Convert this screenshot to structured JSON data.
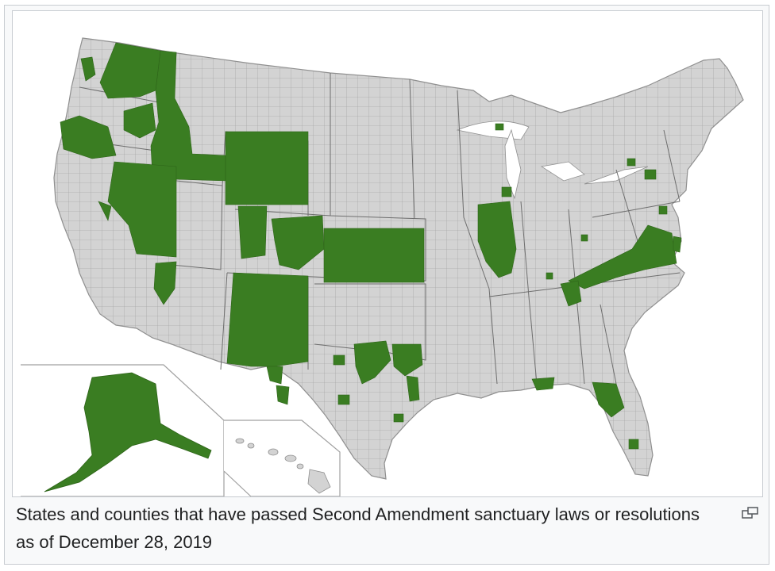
{
  "caption": "States and counties that have passed Second Amendment sanctuary laws or resolutions as of December 28, 2019",
  "colors": {
    "land": "#d3d3d3",
    "sanctuary": "#3a7d22",
    "border": "#8f8f8f",
    "frame": "#c8ccd1",
    "caption_bg": "#f8f9fa"
  },
  "regions": {
    "states_full": [
      "Wyoming",
      "Kansas",
      "Idaho"
    ],
    "states_partial": [
      "Washington",
      "Oregon",
      "Nevada",
      "Utah",
      "Colorado",
      "New Mexico",
      "Arizona",
      "Texas",
      "Oklahoma",
      "Illinois",
      "Virginia",
      "Tennessee",
      "Kentucky",
      "North Carolina",
      "Florida",
      "Pennsylvania",
      "New Jersey",
      "Maryland",
      "Alaska",
      "Michigan"
    ],
    "insets": [
      "Alaska",
      "Hawaii"
    ]
  },
  "icons": {
    "magnify": "magnify-icon"
  }
}
